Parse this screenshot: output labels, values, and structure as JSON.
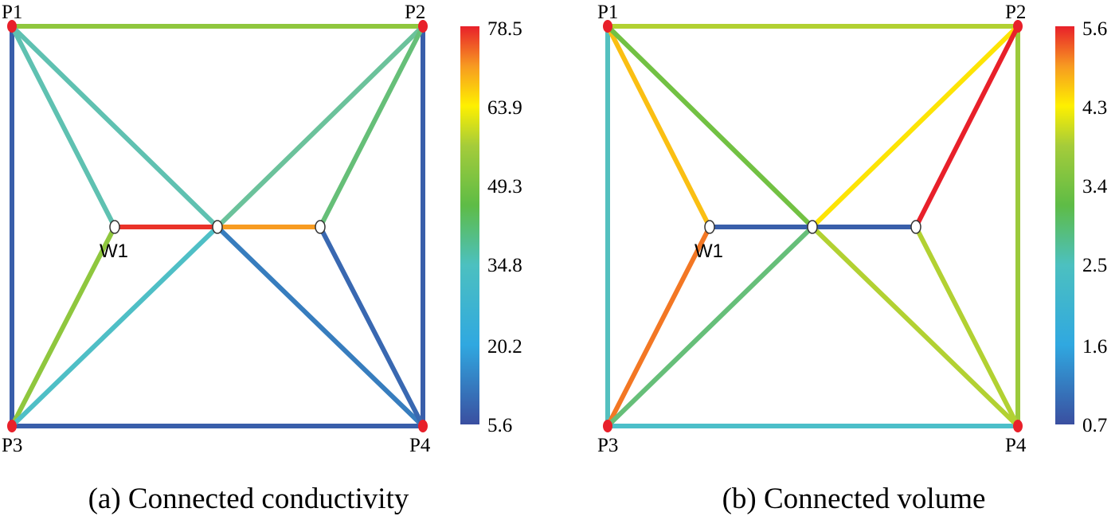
{
  "panels": [
    {
      "id": "a",
      "caption": "(a) Connected conductivity",
      "well_label": "W1",
      "node_labels": {
        "P1": "P1",
        "P2": "P2",
        "P3": "P3",
        "P4": "P4"
      },
      "colorbar": {
        "ticks": [
          "78.5",
          "63.9",
          "49.3",
          "34.8",
          "20.2",
          "5.6"
        ],
        "tick_values": [
          78.5,
          63.9,
          49.3,
          34.8,
          20.2,
          5.6
        ],
        "min": 5.6,
        "max": 78.5
      },
      "edges": [
        {
          "from": "P1",
          "to": "P2",
          "value": 44
        },
        {
          "from": "P1",
          "to": "P3",
          "value": 7
        },
        {
          "from": "P2",
          "to": "P4",
          "value": 7
        },
        {
          "from": "P3",
          "to": "P4",
          "value": 7
        },
        {
          "from": "P1",
          "to": "W1",
          "value": 24
        },
        {
          "from": "P1",
          "to": "C",
          "value": 24
        },
        {
          "from": "P2",
          "to": "C",
          "value": 27
        },
        {
          "from": "P2",
          "to": "W2",
          "value": 31
        },
        {
          "from": "W1",
          "to": "C",
          "value": 77
        },
        {
          "from": "C",
          "to": "W2",
          "value": 68
        },
        {
          "from": "P3",
          "to": "W1",
          "value": 44
        },
        {
          "from": "P3",
          "to": "C",
          "value": 21
        },
        {
          "from": "C",
          "to": "P4",
          "value": 10
        },
        {
          "from": "W2",
          "to": "P4",
          "value": 8
        }
      ]
    },
    {
      "id": "b",
      "caption": "(b) Connected volume",
      "well_label": "W1",
      "node_labels": {
        "P1": "P1",
        "P2": "P2",
        "P3": "P3",
        "P4": "P4"
      },
      "colorbar": {
        "ticks": [
          "5.6",
          "4.3",
          "3.4",
          "2.5",
          "1.6",
          "0.7"
        ],
        "tick_values": [
          5.6,
          4.3,
          3.4,
          2.5,
          1.6,
          0.7
        ],
        "min": 0.7,
        "max": 5.6
      },
      "edges": [
        {
          "from": "P1",
          "to": "P2",
          "value": 3.6
        },
        {
          "from": "P1",
          "to": "P3",
          "value": 1.8
        },
        {
          "from": "P2",
          "to": "P4",
          "value": 3.4
        },
        {
          "from": "P3",
          "to": "P4",
          "value": 1.7
        },
        {
          "from": "P1",
          "to": "W1",
          "value": 4.6
        },
        {
          "from": "P1",
          "to": "C",
          "value": 3.0
        },
        {
          "from": "P2",
          "to": "C",
          "value": 4.3
        },
        {
          "from": "P2",
          "to": "W2",
          "value": 5.6
        },
        {
          "from": "W1",
          "to": "C",
          "value": 0.8
        },
        {
          "from": "C",
          "to": "W2",
          "value": 0.8
        },
        {
          "from": "P3",
          "to": "W1",
          "value": 5.1
        },
        {
          "from": "P3",
          "to": "C",
          "value": 2.4
        },
        {
          "from": "C",
          "to": "P4",
          "value": 3.6
        },
        {
          "from": "W2",
          "to": "P4",
          "value": 3.6
        }
      ]
    }
  ],
  "colormap": [
    "#3a4fa0",
    "#34bde8",
    "#6cc2a0",
    "#5ebc46",
    "#a5cc3a",
    "#fef000",
    "#f79a21",
    "#e8202a"
  ],
  "node_color_producer": "#e8202a",
  "node_color_junction": "#ffffff"
}
